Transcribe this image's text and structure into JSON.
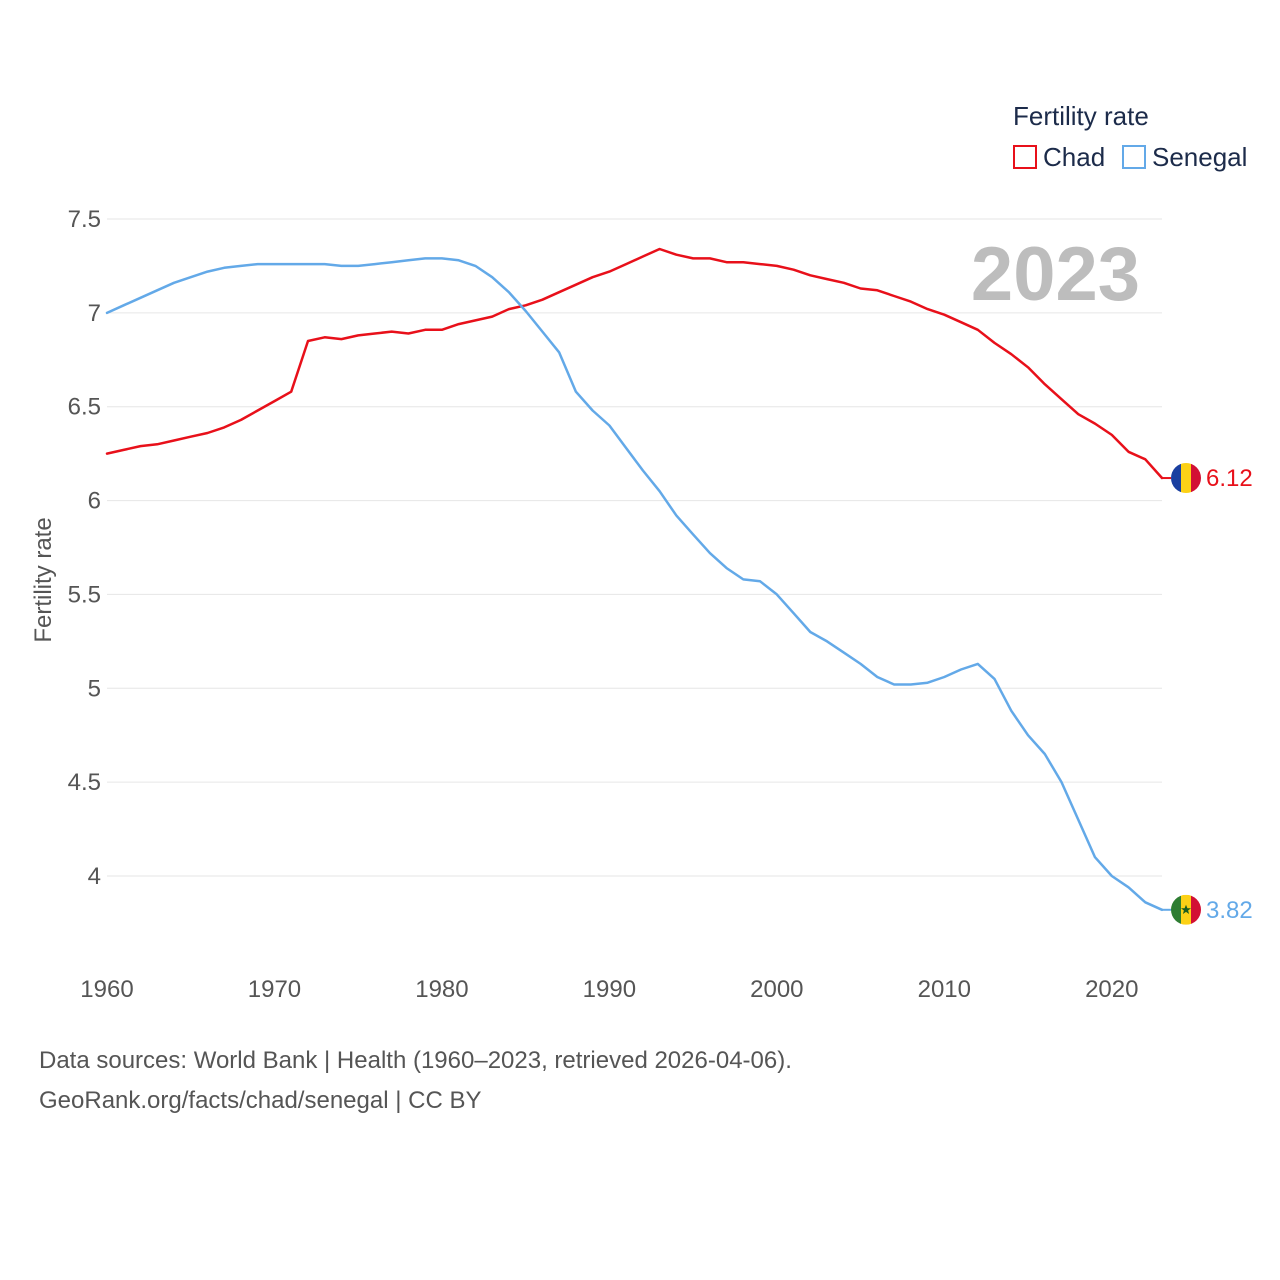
{
  "chart_data": {
    "type": "line",
    "legend_title": "Fertility rate",
    "ylabel": "Fertility rate",
    "year_label": "2023",
    "ylim": [
      3.7,
      7.5
    ],
    "xlim": [
      1960,
      2023
    ],
    "y_ticks": [
      {
        "value": 7.5,
        "label": "7.5"
      },
      {
        "value": 7,
        "label": "7"
      },
      {
        "value": 6.5,
        "label": "6.5"
      },
      {
        "value": 6,
        "label": "6"
      },
      {
        "value": 5.5,
        "label": "5.5"
      },
      {
        "value": 5,
        "label": "5"
      },
      {
        "value": 4.5,
        "label": "4.5"
      },
      {
        "value": 4,
        "label": "4"
      }
    ],
    "x_ticks": [
      {
        "value": 1960,
        "label": "1960"
      },
      {
        "value": 1970,
        "label": "1970"
      },
      {
        "value": 1980,
        "label": "1980"
      },
      {
        "value": 1990,
        "label": "1990"
      },
      {
        "value": 2000,
        "label": "2000"
      },
      {
        "value": 2010,
        "label": "2010"
      },
      {
        "value": 2020,
        "label": "2020"
      }
    ],
    "x": [
      1960,
      1961,
      1962,
      1963,
      1964,
      1965,
      1966,
      1967,
      1968,
      1969,
      1970,
      1971,
      1972,
      1973,
      1974,
      1975,
      1976,
      1977,
      1978,
      1979,
      1980,
      1981,
      1982,
      1983,
      1984,
      1985,
      1986,
      1987,
      1988,
      1989,
      1990,
      1991,
      1992,
      1993,
      1994,
      1995,
      1996,
      1997,
      1998,
      1999,
      2000,
      2001,
      2002,
      2003,
      2004,
      2005,
      2006,
      2007,
      2008,
      2009,
      2010,
      2011,
      2012,
      2013,
      2014,
      2015,
      2016,
      2017,
      2018,
      2019,
      2020,
      2021,
      2022,
      2023
    ],
    "series": [
      {
        "name": "Chad",
        "color": "#e8101a",
        "end_label": "6.12",
        "flag": "chad-flag-icon",
        "values": [
          6.25,
          6.27,
          6.29,
          6.3,
          6.32,
          6.34,
          6.36,
          6.39,
          6.43,
          6.48,
          6.53,
          6.58,
          6.85,
          6.87,
          6.86,
          6.88,
          6.89,
          6.9,
          6.89,
          6.91,
          6.91,
          6.94,
          6.96,
          6.98,
          7.02,
          7.04,
          7.07,
          7.11,
          7.15,
          7.19,
          7.22,
          7.26,
          7.3,
          7.34,
          7.31,
          7.29,
          7.29,
          7.27,
          7.27,
          7.26,
          7.25,
          7.23,
          7.2,
          7.18,
          7.16,
          7.13,
          7.12,
          7.09,
          7.06,
          7.02,
          6.99,
          6.95,
          6.91,
          6.84,
          6.78,
          6.71,
          6.62,
          6.54,
          6.46,
          6.41,
          6.35,
          6.26,
          6.22,
          6.12
        ]
      },
      {
        "name": "Senegal",
        "color": "#63a9e8",
        "end_label": "3.82",
        "flag": "senegal-flag-icon",
        "values": [
          7.0,
          7.04,
          7.08,
          7.12,
          7.16,
          7.19,
          7.22,
          7.24,
          7.25,
          7.26,
          7.26,
          7.26,
          7.26,
          7.26,
          7.25,
          7.25,
          7.26,
          7.27,
          7.28,
          7.29,
          7.29,
          7.28,
          7.25,
          7.19,
          7.11,
          7.01,
          6.9,
          6.79,
          6.58,
          6.48,
          6.4,
          6.28,
          6.16,
          6.05,
          5.92,
          5.82,
          5.72,
          5.64,
          5.58,
          5.57,
          5.5,
          5.4,
          5.3,
          5.25,
          5.19,
          5.13,
          5.06,
          5.02,
          5.02,
          5.03,
          5.06,
          5.1,
          5.13,
          5.05,
          4.88,
          4.75,
          4.65,
          4.5,
          4.3,
          4.1,
          4.0,
          3.94,
          3.86,
          3.82
        ]
      }
    ]
  },
  "footer": {
    "line1": "Data sources: World Bank | Health (1960–2023, retrieved 2026-04-06).",
    "line2": "GeoRank.org/facts/chad/senegal | CC BY"
  }
}
